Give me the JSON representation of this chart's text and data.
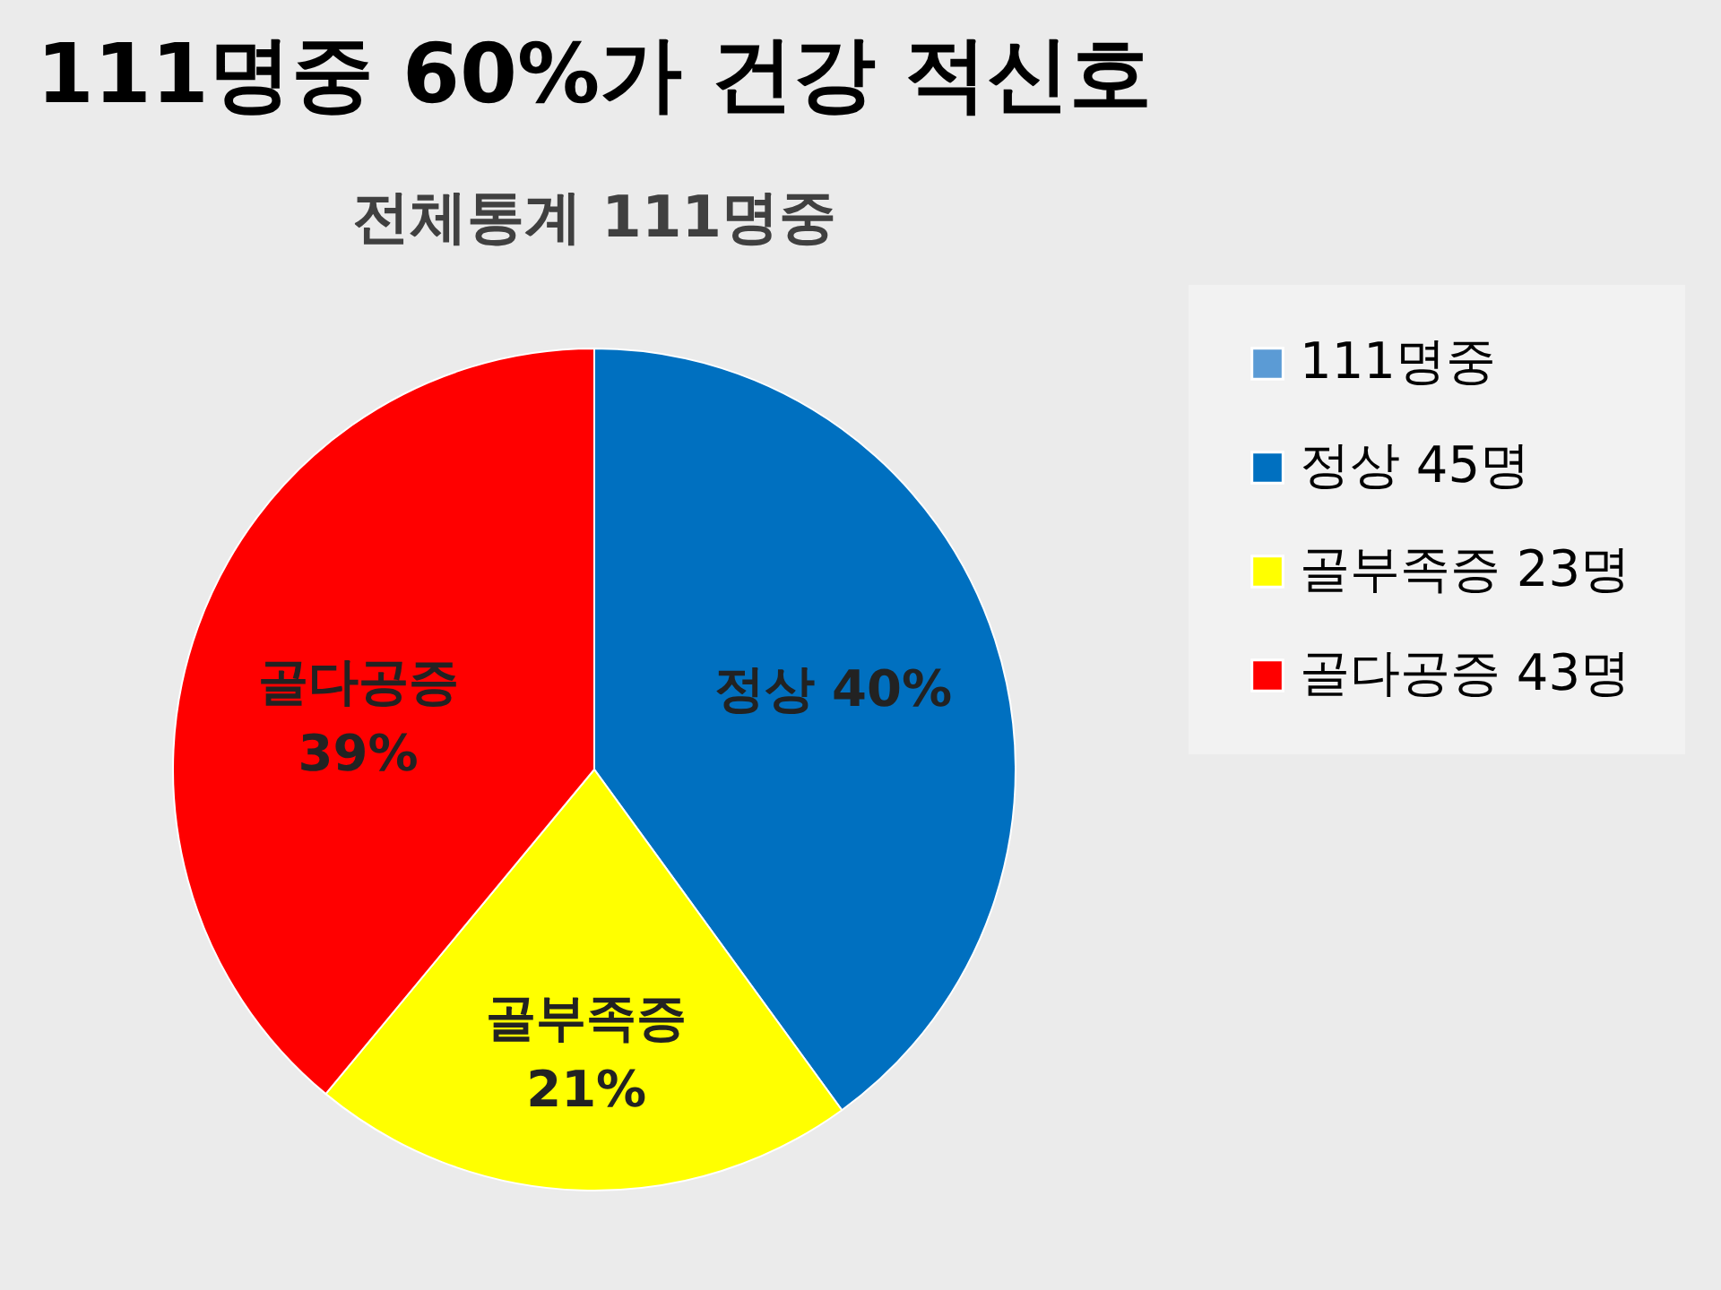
{
  "chart_data": {
    "type": "pie",
    "title": "111명중 60%가 건강 적신호",
    "subtitle": "전체통계 111명중",
    "categories": [
      "111명중",
      "정상 45명",
      "골부족증 23명",
      "골다공증 43명"
    ],
    "values": [
      0,
      40,
      21,
      39
    ],
    "colors": [
      "#5b9bd5",
      "#0070c0",
      "#ffff00",
      "#ff0000"
    ],
    "value_labels": [
      null,
      "정상 40%",
      "골부족증\n21%",
      "골다공증\n39%"
    ],
    "legend": "right"
  }
}
